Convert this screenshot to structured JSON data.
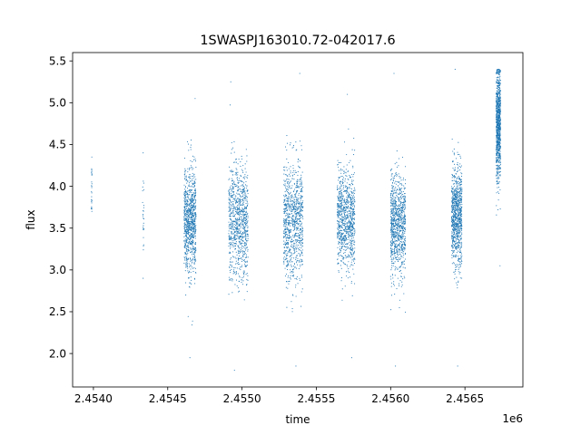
{
  "chart_data": {
    "type": "scatter",
    "title": "1SWASPJ163010.72-042017.6",
    "xlabel": "time",
    "ylabel": "flux",
    "x_offset_label": "1e6",
    "xlim": [
      2453860,
      2456890
    ],
    "ylim": [
      1.6,
      5.6
    ],
    "x_ticks": [
      2454000,
      2454500,
      2455000,
      2455500,
      2456000,
      2456500
    ],
    "x_tick_labels": [
      "2.4540",
      "2.4545",
      "2.4550",
      "2.4555",
      "2.4560",
      "2.4565"
    ],
    "y_ticks": [
      2.0,
      2.5,
      3.0,
      3.5,
      4.0,
      4.5,
      5.0,
      5.5
    ],
    "y_tick_labels": [
      "2.0",
      "2.5",
      "3.0",
      "3.5",
      "4.0",
      "4.5",
      "5.0",
      "5.5"
    ],
    "grid": false,
    "marker_color": "#1f77b4",
    "series": [
      {
        "clusters": [
          {
            "x_range": [
              2453985,
              2453990
            ],
            "y_center": 3.95,
            "y_spread": 0.15,
            "y_min": 3.7,
            "y_max": 4.35,
            "density": "sparse"
          },
          {
            "x_range": [
              2454330,
              2454340
            ],
            "y_center": 3.7,
            "y_spread": 0.25,
            "y_min": 2.9,
            "y_max": 4.4,
            "density": "sparse"
          },
          {
            "x_range": [
              2454610,
              2454690
            ],
            "y_center": 3.6,
            "y_spread": 0.3,
            "y_min": 1.95,
            "y_max": 5.05,
            "density": "dense"
          },
          {
            "x_range": [
              2454910,
              2455040
            ],
            "y_center": 3.6,
            "y_spread": 0.35,
            "y_min": 1.8,
            "y_max": 5.25,
            "density": "dense"
          },
          {
            "x_range": [
              2455280,
              2455410
            ],
            "y_center": 3.6,
            "y_spread": 0.35,
            "y_min": 1.85,
            "y_max": 5.35,
            "density": "dense"
          },
          {
            "x_range": [
              2455640,
              2455760
            ],
            "y_center": 3.6,
            "y_spread": 0.3,
            "y_min": 1.95,
            "y_max": 5.1,
            "density": "dense"
          },
          {
            "x_range": [
              2456000,
              2456100
            ],
            "y_center": 3.55,
            "y_spread": 0.3,
            "y_min": 1.85,
            "y_max": 5.35,
            "density": "dense"
          },
          {
            "x_range": [
              2456410,
              2456480
            ],
            "y_center": 3.65,
            "y_spread": 0.3,
            "y_min": 1.85,
            "y_max": 5.4,
            "density": "dense"
          },
          {
            "x_range": [
              2456710,
              2456740
            ],
            "y_center": 4.75,
            "y_spread": 0.35,
            "y_min": 3.05,
            "y_max": 5.4,
            "density": "dense"
          }
        ]
      }
    ]
  }
}
